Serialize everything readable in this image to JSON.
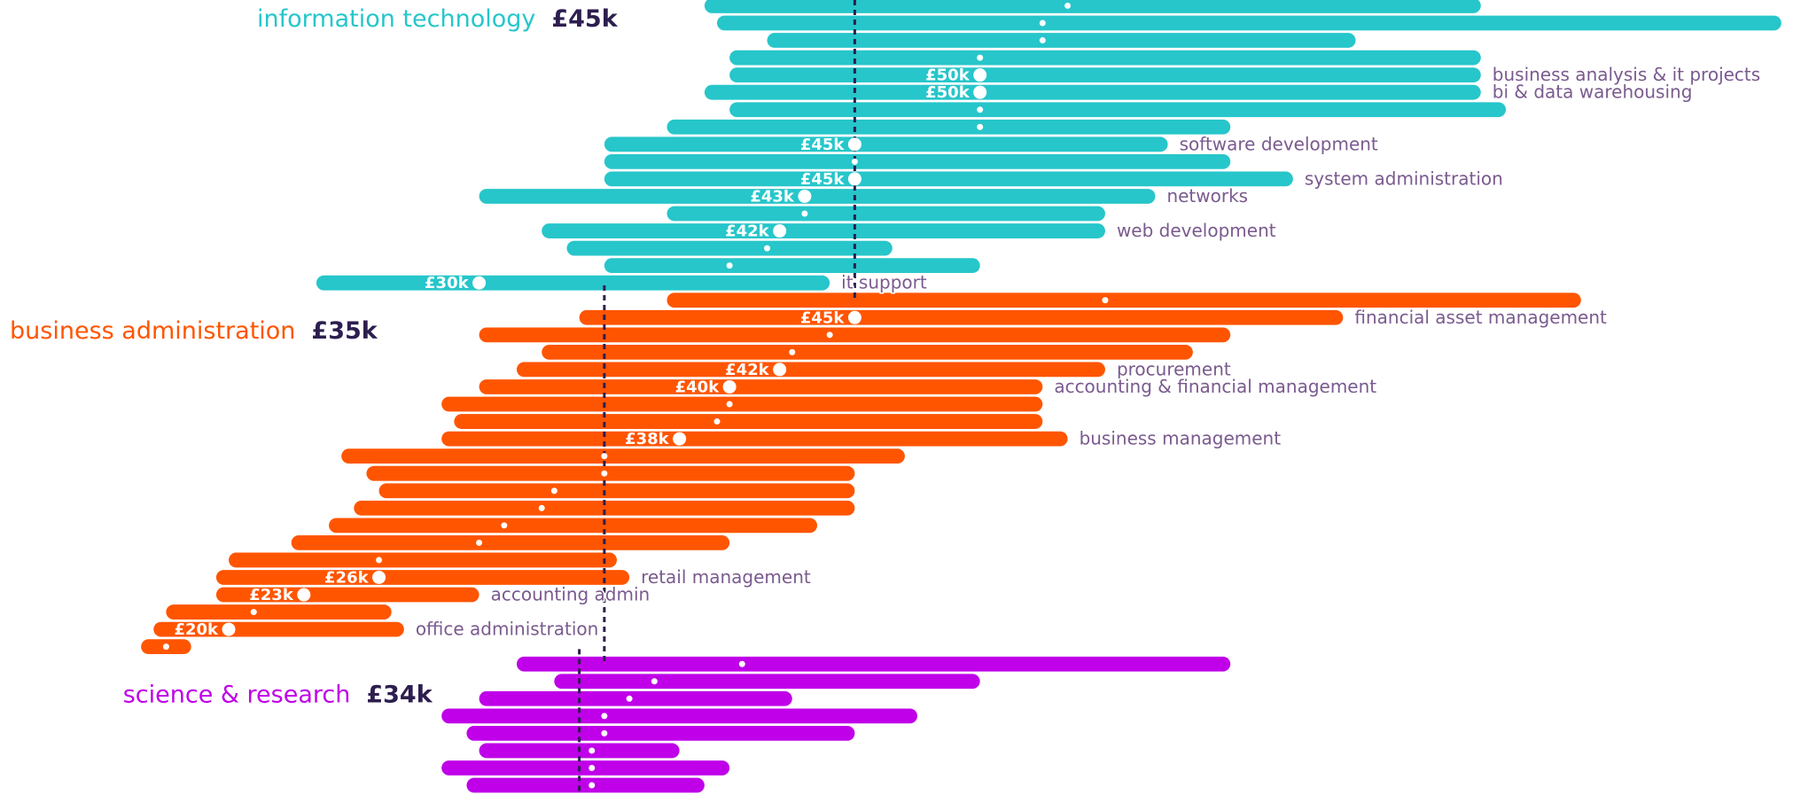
{
  "chart_data": {
    "type": "range",
    "groups": [
      {
        "name": "information technology",
        "median": 45,
        "median_label": "£45k",
        "color": "#26c6ca",
        "categories": [
          null,
          null,
          null,
          null,
          "business analysis & it projects",
          "bi & data warehousing",
          null,
          null,
          "software development",
          null,
          "system administration",
          "networks",
          null,
          "web development",
          null,
          null,
          "it support"
        ],
        "low": [
          39,
          39.5,
          41.5,
          40,
          40,
          39,
          40,
          37.5,
          35,
          35,
          35,
          30,
          37.5,
          32.5,
          33.5,
          35,
          23.5
        ],
        "high": [
          70,
          82,
          65,
          70,
          70,
          70,
          71,
          60,
          57.5,
          60,
          62.5,
          57,
          55,
          55,
          46.5,
          50,
          44
        ],
        "values": [
          53.5,
          52.5,
          52.5,
          50,
          50,
          50,
          50,
          50,
          45,
          45,
          45,
          43,
          43,
          42,
          41.5,
          40,
          30
        ],
        "value_labels": [
          null,
          null,
          null,
          null,
          "£50k",
          "£50k",
          null,
          null,
          "£45k",
          null,
          "£45k",
          "£43k",
          null,
          "£42k",
          null,
          null,
          "£30k"
        ]
      },
      {
        "name": "business administration",
        "median": 35,
        "median_label": "£35k",
        "color": "#ff5500",
        "categories": [
          null,
          "financial asset management",
          null,
          null,
          "procurement",
          "accounting & financial management",
          null,
          null,
          "business management",
          null,
          null,
          null,
          null,
          null,
          null,
          null,
          "retail management",
          "accounting admin",
          null,
          "office administration",
          null
        ],
        "low": [
          37.5,
          34,
          30,
          32.5,
          31.5,
          30,
          28.5,
          29,
          28.5,
          24.5,
          25.5,
          26,
          25,
          24,
          22.5,
          20,
          19.5,
          19.5,
          17.5,
          17,
          16.5
        ],
        "high": [
          74,
          64.5,
          60,
          58.5,
          55,
          52.5,
          52.5,
          52.5,
          53.5,
          47,
          45,
          45,
          45,
          43.5,
          40,
          35.5,
          36,
          30,
          26.5,
          27,
          18.5
        ],
        "values": [
          55,
          45,
          44,
          42.5,
          42,
          40,
          40,
          39.5,
          38,
          35,
          35,
          33,
          32.5,
          31,
          30,
          26,
          26,
          23,
          21,
          20,
          17.5
        ],
        "value_labels": [
          null,
          "£45k",
          null,
          null,
          "£42k",
          "£40k",
          null,
          null,
          "£38k",
          null,
          null,
          null,
          null,
          null,
          null,
          null,
          "£26k",
          "£23k",
          null,
          "£20k",
          null
        ]
      },
      {
        "name": "science & research",
        "median": 34,
        "median_label": "£34k",
        "color": "#bf00e8",
        "categories": [
          null,
          null,
          null,
          null,
          null,
          null,
          null,
          null
        ],
        "low": [
          31.5,
          33,
          30,
          28.5,
          29.5,
          30,
          28.5,
          29.5
        ],
        "high": [
          60,
          50,
          42.5,
          47.5,
          45,
          38,
          40,
          39
        ],
        "values": [
          40.5,
          37,
          36,
          35,
          35,
          34.5,
          34.5,
          34.5
        ],
        "value_labels": [
          null,
          null,
          null,
          null,
          null,
          null,
          null,
          null
        ]
      }
    ]
  }
}
